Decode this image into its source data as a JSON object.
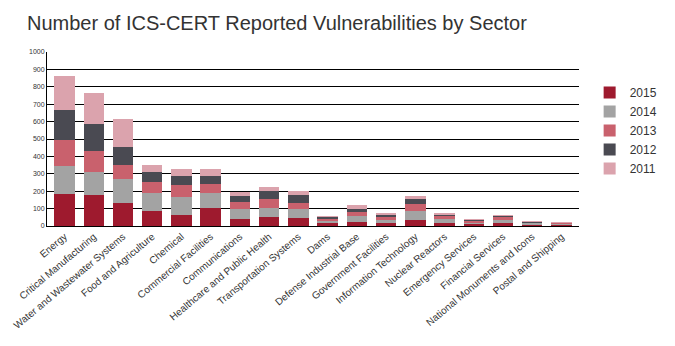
{
  "chart_data": {
    "type": "bar",
    "title": "Number of ICS-CERT Reported Vulnerabilities by Sector",
    "stacked": true,
    "grid": true,
    "legend": "right",
    "categories": [
      "Energy",
      "Critical Manufacturing",
      "Water and Wastewater Systems",
      "Food and Agriculture",
      "Chemical",
      "Commercial Facilities",
      "Communications",
      "Healthcare and Public Health",
      "Transportation Systems",
      "Dams",
      "Defense Industrial Base",
      "Government Facilities",
      "Information Technology",
      "Nuclear Reactors",
      "Emergency Services",
      "Financial Services",
      "National Monuments and Icons",
      "Postal and Shipping"
    ],
    "series": [
      {
        "name": "2015",
        "color": "#9e1a2e",
        "values": [
          185,
          180,
          135,
          85,
          65,
          105,
          40,
          50,
          45,
          15,
          25,
          15,
          35,
          15,
          10,
          15,
          5,
          5
        ]
      },
      {
        "name": "2014",
        "color": "#a3a3a3",
        "values": [
          160,
          130,
          135,
          105,
          100,
          85,
          55,
          55,
          50,
          15,
          30,
          20,
          50,
          25,
          10,
          20,
          10,
          5
        ]
      },
      {
        "name": "2013",
        "color": "#c9616d",
        "values": [
          150,
          120,
          80,
          65,
          70,
          50,
          45,
          50,
          40,
          10,
          25,
          15,
          40,
          15,
          10,
          15,
          5,
          5
        ]
      },
      {
        "name": "2012",
        "color": "#4a4a52",
        "values": [
          170,
          155,
          105,
          55,
          55,
          50,
          35,
          45,
          45,
          10,
          20,
          15,
          30,
          10,
          5,
          10,
          5,
          5
        ]
      },
      {
        "name": "2011",
        "color": "#dba3ad",
        "values": [
          195,
          180,
          160,
          40,
          40,
          40,
          20,
          25,
          20,
          5,
          20,
          10,
          20,
          10,
          5,
          5,
          5,
          5
        ]
      }
    ],
    "ylim": [
      0,
      1000
    ],
    "yticks": [
      0,
      100,
      200,
      300,
      400,
      500,
      600,
      700,
      800,
      900,
      1000
    ]
  }
}
